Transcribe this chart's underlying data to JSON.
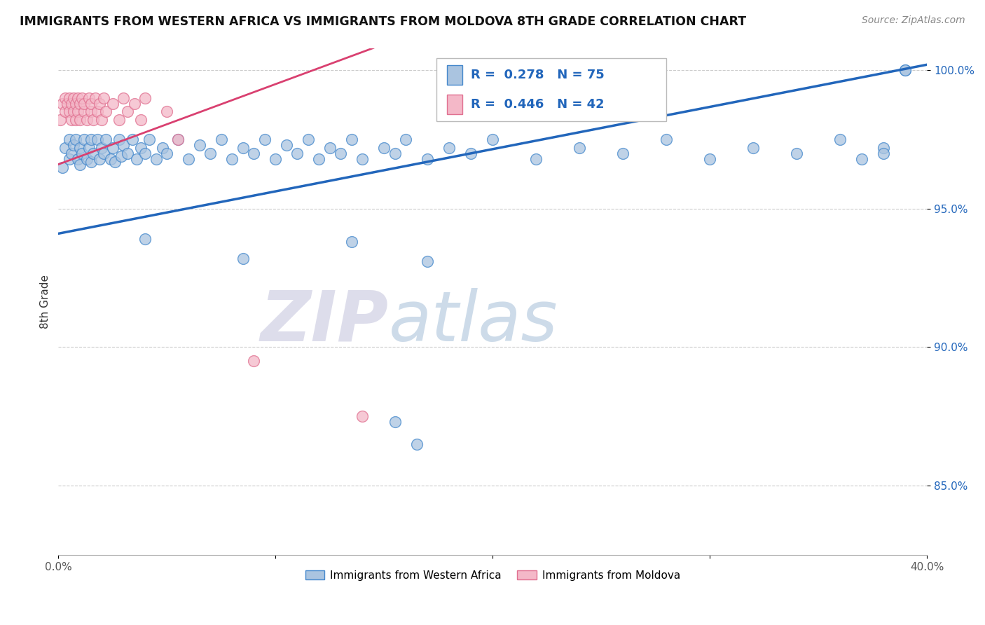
{
  "title": "IMMIGRANTS FROM WESTERN AFRICA VS IMMIGRANTS FROM MOLDOVA 8TH GRADE CORRELATION CHART",
  "source": "Source: ZipAtlas.com",
  "ylabel": "8th Grade",
  "x_min": 0.0,
  "x_max": 0.4,
  "y_min": 0.825,
  "y_max": 1.008,
  "x_ticks": [
    0.0,
    0.1,
    0.2,
    0.3,
    0.4
  ],
  "x_tick_labels": [
    "0.0%",
    "",
    "",
    "",
    "40.0%"
  ],
  "y_ticks": [
    0.85,
    0.9,
    0.95,
    1.0
  ],
  "y_tick_labels": [
    "85.0%",
    "90.0%",
    "95.0%",
    "100.0%"
  ],
  "blue_label": "Immigrants from Western Africa",
  "pink_label": "Immigrants from Moldova",
  "blue_R": 0.278,
  "blue_N": 75,
  "pink_R": 0.446,
  "pink_N": 42,
  "blue_color": "#aac4e0",
  "blue_edge_color": "#4488cc",
  "blue_line_color": "#2266bb",
  "pink_color": "#f4b8c8",
  "pink_edge_color": "#e07090",
  "pink_line_color": "#d94070",
  "legend_text_color": "#2266bb",
  "blue_scatter_x": [
    0.002,
    0.003,
    0.005,
    0.005,
    0.006,
    0.007,
    0.008,
    0.009,
    0.01,
    0.01,
    0.011,
    0.012,
    0.013,
    0.014,
    0.015,
    0.015,
    0.016,
    0.018,
    0.019,
    0.02,
    0.021,
    0.022,
    0.024,
    0.025,
    0.026,
    0.028,
    0.029,
    0.03,
    0.032,
    0.034,
    0.036,
    0.038,
    0.04,
    0.042,
    0.045,
    0.048,
    0.05,
    0.055,
    0.06,
    0.065,
    0.07,
    0.075,
    0.08,
    0.085,
    0.09,
    0.095,
    0.1,
    0.105,
    0.11,
    0.115,
    0.12,
    0.125,
    0.13,
    0.135,
    0.14,
    0.15,
    0.155,
    0.16,
    0.17,
    0.18,
    0.19,
    0.2,
    0.22,
    0.24,
    0.26,
    0.28,
    0.3,
    0.32,
    0.34,
    0.36,
    0.37,
    0.38,
    0.38,
    0.39,
    0.39
  ],
  "blue_scatter_y": [
    0.965,
    0.972,
    0.975,
    0.968,
    0.97,
    0.973,
    0.975,
    0.968,
    0.972,
    0.966,
    0.97,
    0.975,
    0.968,
    0.972,
    0.975,
    0.967,
    0.97,
    0.975,
    0.968,
    0.972,
    0.97,
    0.975,
    0.968,
    0.972,
    0.967,
    0.975,
    0.969,
    0.973,
    0.97,
    0.975,
    0.968,
    0.972,
    0.97,
    0.975,
    0.968,
    0.972,
    0.97,
    0.975,
    0.968,
    0.973,
    0.97,
    0.975,
    0.968,
    0.972,
    0.97,
    0.975,
    0.968,
    0.973,
    0.97,
    0.975,
    0.968,
    0.972,
    0.97,
    0.975,
    0.968,
    0.972,
    0.97,
    0.975,
    0.968,
    0.972,
    0.97,
    0.975,
    0.968,
    0.972,
    0.97,
    0.975,
    0.968,
    0.972,
    0.97,
    0.975,
    0.968,
    0.972,
    0.97,
    1.0,
    1.0
  ],
  "blue_outlier_x": [
    0.04,
    0.085,
    0.135,
    0.155,
    0.165,
    0.17
  ],
  "blue_outlier_y": [
    0.939,
    0.932,
    0.938,
    0.873,
    0.865,
    0.931
  ],
  "pink_scatter_x": [
    0.001,
    0.002,
    0.003,
    0.003,
    0.004,
    0.005,
    0.005,
    0.006,
    0.006,
    0.007,
    0.007,
    0.008,
    0.008,
    0.009,
    0.009,
    0.01,
    0.01,
    0.011,
    0.012,
    0.012,
    0.013,
    0.014,
    0.015,
    0.015,
    0.016,
    0.017,
    0.018,
    0.019,
    0.02,
    0.021,
    0.022,
    0.025,
    0.028,
    0.03,
    0.032,
    0.035,
    0.038,
    0.04,
    0.05,
    0.055,
    0.09,
    0.14
  ],
  "pink_scatter_y": [
    0.982,
    0.988,
    0.99,
    0.985,
    0.988,
    0.99,
    0.985,
    0.988,
    0.982,
    0.99,
    0.985,
    0.988,
    0.982,
    0.99,
    0.985,
    0.988,
    0.982,
    0.99,
    0.985,
    0.988,
    0.982,
    0.99,
    0.985,
    0.988,
    0.982,
    0.99,
    0.985,
    0.988,
    0.982,
    0.99,
    0.985,
    0.988,
    0.982,
    0.99,
    0.985,
    0.988,
    0.982,
    0.99,
    0.985,
    0.975,
    0.895,
    0.875
  ],
  "watermark_zip": "ZIP",
  "watermark_atlas": "atlas",
  "blue_line_x": [
    0.0,
    0.4
  ],
  "blue_line_y": [
    0.941,
    1.002
  ],
  "pink_line_x": [
    0.0,
    0.145
  ],
  "pink_line_y": [
    0.966,
    1.008
  ]
}
